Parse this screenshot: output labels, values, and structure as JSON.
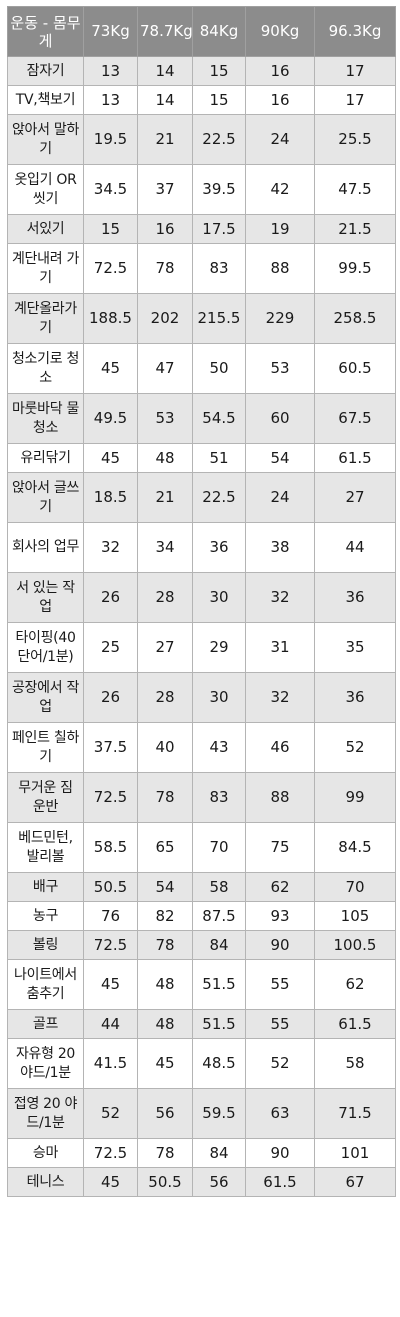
{
  "header": {
    "label": "운동 - 몸무게",
    "weights": [
      "73Kg",
      "78.7Kg",
      "84Kg",
      "90Kg",
      "96.3Kg"
    ]
  },
  "rows": [
    {
      "label": "잠자기",
      "values": [
        "13",
        "14",
        "15",
        "16",
        "17"
      ]
    },
    {
      "label": "TV,책보기",
      "values": [
        "13",
        "14",
        "15",
        "16",
        "17"
      ]
    },
    {
      "label": "앉아서 말하기",
      "values": [
        "19.5",
        "21",
        "22.5",
        "24",
        "25.5"
      ]
    },
    {
      "label": "옷입기 OR 씻기",
      "values": [
        "34.5",
        "37",
        "39.5",
        "42",
        "47.5"
      ]
    },
    {
      "label": "서있기",
      "values": [
        "15",
        "16",
        "17.5",
        "19",
        "21.5"
      ]
    },
    {
      "label": "계단내려 가기",
      "values": [
        "72.5",
        "78",
        "83",
        "88",
        "99.5"
      ]
    },
    {
      "label": "계단올라가기",
      "values": [
        "188.5",
        "202",
        "215.5",
        "229",
        "258.5"
      ]
    },
    {
      "label": "청소기로 청소",
      "values": [
        "45",
        "47",
        "50",
        "53",
        "60.5"
      ]
    },
    {
      "label": "마룻바닥 물청소",
      "values": [
        "49.5",
        "53",
        "54.5",
        "60",
        "67.5"
      ]
    },
    {
      "label": "유리닦기",
      "values": [
        "45",
        "48",
        "51",
        "54",
        "61.5"
      ]
    },
    {
      "label": "앉아서 글쓰기",
      "values": [
        "18.5",
        "21",
        "22.5",
        "24",
        "27"
      ]
    },
    {
      "label": "회사의 업무",
      "values": [
        "32",
        "34",
        "36",
        "38",
        "44"
      ]
    },
    {
      "label": "서 있는 작업",
      "values": [
        "26",
        "28",
        "30",
        "32",
        "36"
      ]
    },
    {
      "label": "타이핑(40 단어/1분)",
      "values": [
        "25",
        "27",
        "29",
        "31",
        "35"
      ]
    },
    {
      "label": "공장에서 작업",
      "values": [
        "26",
        "28",
        "30",
        "32",
        "36"
      ]
    },
    {
      "label": "페인트 칠하기",
      "values": [
        "37.5",
        "40",
        "43",
        "46",
        "52"
      ]
    },
    {
      "label": "무거운 짐 운반",
      "values": [
        "72.5",
        "78",
        "83",
        "88",
        "99"
      ]
    },
    {
      "label": "베드민턴, 발리볼",
      "values": [
        "58.5",
        "65",
        "70",
        "75",
        "84.5"
      ]
    },
    {
      "label": "배구",
      "values": [
        "50.5",
        "54",
        "58",
        "62",
        "70"
      ]
    },
    {
      "label": "농구",
      "values": [
        "76",
        "82",
        "87.5",
        "93",
        "105"
      ]
    },
    {
      "label": "볼링",
      "values": [
        "72.5",
        "78",
        "84",
        "90",
        "100.5"
      ]
    },
    {
      "label": "나이트에서 춤추기",
      "values": [
        "45",
        "48",
        "51.5",
        "55",
        "62"
      ]
    },
    {
      "label": "골프",
      "values": [
        "44",
        "48",
        "51.5",
        "55",
        "61.5"
      ]
    },
    {
      "label": "자유형 20 야드/1분",
      "values": [
        "41.5",
        "45",
        "48.5",
        "52",
        "58"
      ]
    },
    {
      "label": "접영 20 야드/1분",
      "values": [
        "52",
        "56",
        "59.5",
        "63",
        "71.5"
      ]
    },
    {
      "label": "승마",
      "values": [
        "72.5",
        "78",
        "84",
        "90",
        "101"
      ]
    },
    {
      "label": "테니스",
      "values": [
        "45",
        "50.5",
        "56",
        "61.5",
        "67"
      ]
    }
  ]
}
